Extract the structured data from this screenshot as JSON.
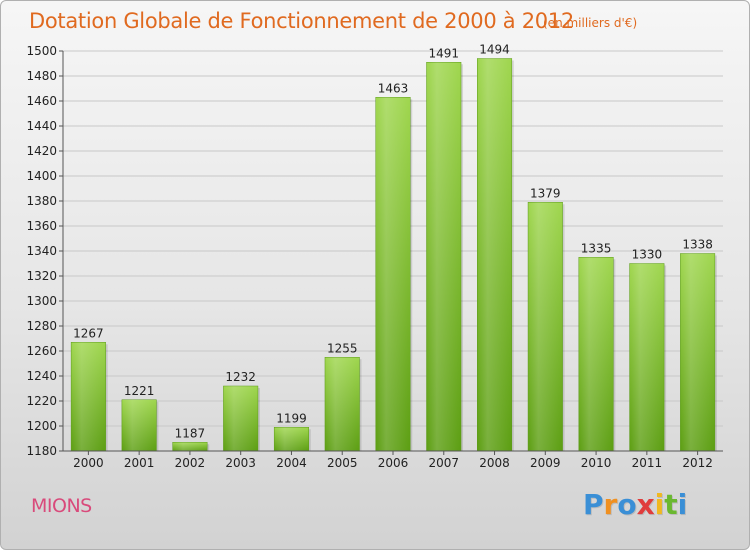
{
  "header": {
    "title": "Dotation Globale de Fonctionnement de 2000 à 2012",
    "subtitle": "(en milliers d'€)"
  },
  "footer": {
    "town": "MIONS",
    "brand_letters": [
      {
        "ch": "P",
        "color": "#3a8fd6"
      },
      {
        "ch": "r",
        "color": "#f09020"
      },
      {
        "ch": "o",
        "color": "#3a8fd6"
      },
      {
        "ch": "x",
        "color": "#e03c3c"
      },
      {
        "ch": "i",
        "color": "#f0b820"
      },
      {
        "ch": "t",
        "color": "#6ab830"
      },
      {
        "ch": "i",
        "color": "#3a8fd6"
      }
    ]
  },
  "chart_data": {
    "type": "bar",
    "title": "Dotation Globale de Fonctionnement de 2000 à 2012",
    "subtitle": "(en milliers d'€)",
    "xlabel": "",
    "ylabel": "",
    "categories": [
      "2000",
      "2001",
      "2002",
      "2003",
      "2004",
      "2005",
      "2006",
      "2007",
      "2008",
      "2009",
      "2010",
      "2011",
      "2012"
    ],
    "values": [
      1267,
      1221,
      1187,
      1232,
      1199,
      1255,
      1463,
      1491,
      1494,
      1379,
      1335,
      1330,
      1338
    ],
    "ylim": [
      1180,
      1500
    ],
    "yticks": [
      1180,
      1200,
      1220,
      1240,
      1260,
      1280,
      1300,
      1320,
      1340,
      1360,
      1380,
      1400,
      1420,
      1440,
      1460,
      1480,
      1500
    ],
    "grid": true,
    "legend": "none",
    "bar_color": "#7cc232"
  }
}
